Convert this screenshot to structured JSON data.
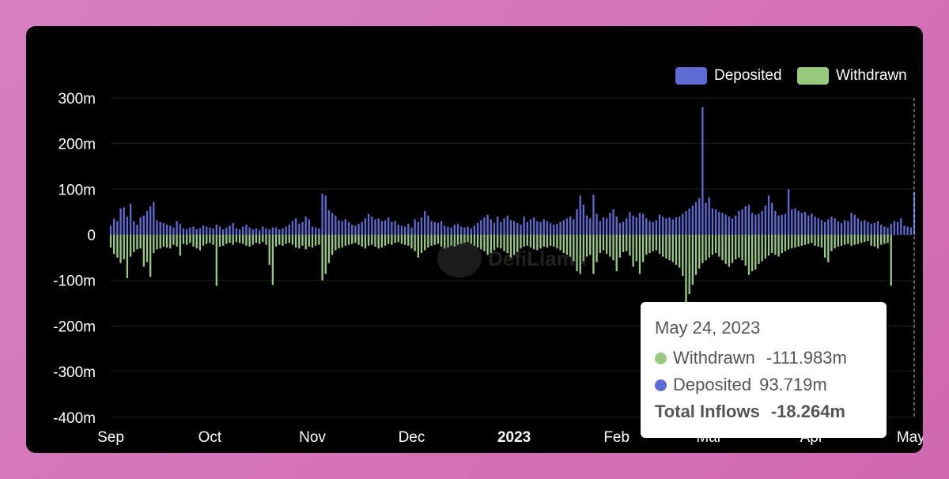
{
  "legend": {
    "deposited_label": "Deposited",
    "withdrawn_label": "Withdrawn"
  },
  "watermark": {
    "text": "DefiLlama",
    "icon": "llama-logo-icon"
  },
  "tooltip": {
    "date": "May 24, 2023",
    "withdrawn_label": "Withdrawn",
    "withdrawn_value": "-111.983m",
    "deposited_label": "Deposited",
    "deposited_value": "93.719m",
    "total_label": "Total Inflows",
    "total_value": "-18.264m"
  },
  "colors": {
    "deposited": "#5f6bd4",
    "withdrawn": "#97cc80",
    "background": "#000000",
    "grid": "#1f1f1f",
    "text": "#ffffff"
  },
  "chart_data": {
    "type": "bar",
    "stacked": true,
    "title": "",
    "xlabel": "",
    "ylabel": "",
    "ylim": [
      -400,
      300
    ],
    "y_unit": "m",
    "y_ticks": [
      "300m",
      "200m",
      "100m",
      "0",
      "-100m",
      "-200m",
      "-300m",
      "-400m"
    ],
    "y_tick_values": [
      300,
      200,
      100,
      0,
      -100,
      -200,
      -300,
      -400
    ],
    "x_ticks": [
      {
        "label": "Sep",
        "day": 0,
        "bold": false
      },
      {
        "label": "Oct",
        "day": 30,
        "bold": false
      },
      {
        "label": "Nov",
        "day": 61,
        "bold": false
      },
      {
        "label": "Dec",
        "day": 91,
        "bold": false
      },
      {
        "label": "2023",
        "day": 122,
        "bold": true
      },
      {
        "label": "Feb",
        "day": 153,
        "bold": false
      },
      {
        "label": "Mar",
        "day": 181,
        "bold": false
      },
      {
        "label": "Apr",
        "day": 212,
        "bold": false
      },
      {
        "label": "May",
        "day": 242,
        "bold": false
      }
    ],
    "x_start": "2022-09-01",
    "x_end": "2023-05-24",
    "legend_position": "top-right",
    "grid": true,
    "highlighted_date": "2023-05-24",
    "series": [
      {
        "name": "Deposited",
        "color": "#5f6bd4",
        "values": [
          20,
          35,
          30,
          58,
          60,
          40,
          68,
          30,
          22,
          38,
          42,
          52,
          62,
          72,
          32,
          28,
          26,
          22,
          20,
          16,
          30,
          24,
          14,
          12,
          16,
          18,
          12,
          14,
          20,
          18,
          16,
          14,
          22,
          18,
          12,
          16,
          20,
          26,
          14,
          12,
          18,
          22,
          16,
          12,
          14,
          10,
          18,
          14,
          12,
          16,
          16,
          12,
          14,
          18,
          22,
          30,
          36,
          24,
          28,
          40,
          34,
          18,
          16,
          14,
          90,
          86,
          54,
          48,
          42,
          32,
          30,
          34,
          28,
          22,
          20,
          24,
          28,
          36,
          46,
          40,
          34,
          36,
          30,
          32,
          38,
          28,
          30,
          22,
          20,
          18,
          24,
          16,
          34,
          28,
          38,
          52,
          42,
          30,
          28,
          26,
          30,
          20,
          18,
          16,
          22,
          24,
          18,
          16,
          18,
          14,
          20,
          26,
          32,
          38,
          44,
          34,
          26,
          40,
          28,
          36,
          42,
          32,
          30,
          26,
          22,
          40,
          28,
          34,
          38,
          30,
          28,
          34,
          30,
          26,
          22,
          24,
          28,
          32,
          36,
          40,
          34,
          56,
          86,
          66,
          42,
          36,
          88,
          46,
          30,
          38,
          36,
          48,
          56,
          40,
          26,
          28,
          36,
          50,
          42,
          38,
          48,
          46,
          36,
          30,
          28,
          32,
          44,
          40,
          36,
          38,
          34,
          38,
          40,
          46,
          52,
          58,
          64,
          72,
          80,
          280,
          70,
          82,
          58,
          56,
          50,
          48,
          44,
          40,
          36,
          42,
          52,
          56,
          62,
          66,
          48,
          44,
          46,
          52,
          64,
          86,
          70,
          52,
          42,
          44,
          46,
          100,
          56,
          58,
          52,
          48,
          50,
          42,
          46,
          40,
          36,
          32,
          28,
          34,
          40,
          36,
          30,
          26,
          32,
          30,
          48,
          44,
          36,
          30,
          32,
          28,
          24,
          26,
          30,
          22,
          18,
          16,
          24,
          30,
          28,
          36,
          20,
          18,
          16,
          93.719
        ],
        "highlight_value": 93.719
      },
      {
        "name": "Withdrawn",
        "color": "#97cc80",
        "values": [
          -28,
          -42,
          -50,
          -62,
          -54,
          -95,
          -48,
          -38,
          -32,
          -30,
          -70,
          -60,
          -92,
          -40,
          -32,
          -30,
          -26,
          -28,
          -30,
          -22,
          -26,
          -46,
          -20,
          -22,
          -18,
          -26,
          -30,
          -34,
          -24,
          -20,
          -18,
          -22,
          -112,
          -26,
          -24,
          -20,
          -18,
          -22,
          -16,
          -18,
          -20,
          -24,
          -26,
          -22,
          -18,
          -20,
          -16,
          -22,
          -66,
          -110,
          -26,
          -22,
          -24,
          -20,
          -18,
          -22,
          -28,
          -30,
          -24,
          -32,
          -26,
          -28,
          -24,
          -22,
          -100,
          -86,
          -62,
          -44,
          -34,
          -30,
          -28,
          -24,
          -22,
          -20,
          -18,
          -22,
          -26,
          -30,
          -24,
          -22,
          -26,
          -30,
          -28,
          -24,
          -20,
          -22,
          -18,
          -16,
          -20,
          -22,
          -24,
          -30,
          -36,
          -50,
          -40,
          -34,
          -28,
          -24,
          -22,
          -20,
          -26,
          -30,
          -28,
          -24,
          -26,
          -22,
          -20,
          -18,
          -16,
          -20,
          -24,
          -28,
          -32,
          -36,
          -44,
          -40,
          -34,
          -28,
          -30,
          -36,
          -40,
          -50,
          -44,
          -38,
          -30,
          -26,
          -24,
          -28,
          -32,
          -34,
          -30,
          -26,
          -28,
          -24,
          -26,
          -30,
          -34,
          -40,
          -44,
          -48,
          -58,
          -80,
          -86,
          -58,
          -48,
          -44,
          -86,
          -60,
          -40,
          -34,
          -42,
          -48,
          -56,
          -80,
          -50,
          -38,
          -36,
          -46,
          -70,
          -58,
          -86,
          -60,
          -44,
          -40,
          -36,
          -34,
          -42,
          -48,
          -52,
          -56,
          -60,
          -66,
          -72,
          -90,
          -150,
          -130,
          -110,
          -88,
          -74,
          -62,
          -56,
          -50,
          -44,
          -40,
          -48,
          -56,
          -64,
          -70,
          -62,
          -54,
          -50,
          -56,
          -68,
          -88,
          -80,
          -76,
          -64,
          -58,
          -52,
          -46,
          -40,
          -44,
          -48,
          -40,
          -36,
          -32,
          -30,
          -28,
          -26,
          -24,
          -22,
          -20,
          -18,
          -24,
          -26,
          -28,
          -50,
          -60,
          -36,
          -30,
          -26,
          -24,
          -22,
          -20,
          -24,
          -22,
          -20,
          -18,
          -16,
          -14,
          -24,
          -26,
          -30,
          -22,
          -20,
          -18,
          -111.983
        ],
        "highlight_value": -111.983
      }
    ]
  }
}
